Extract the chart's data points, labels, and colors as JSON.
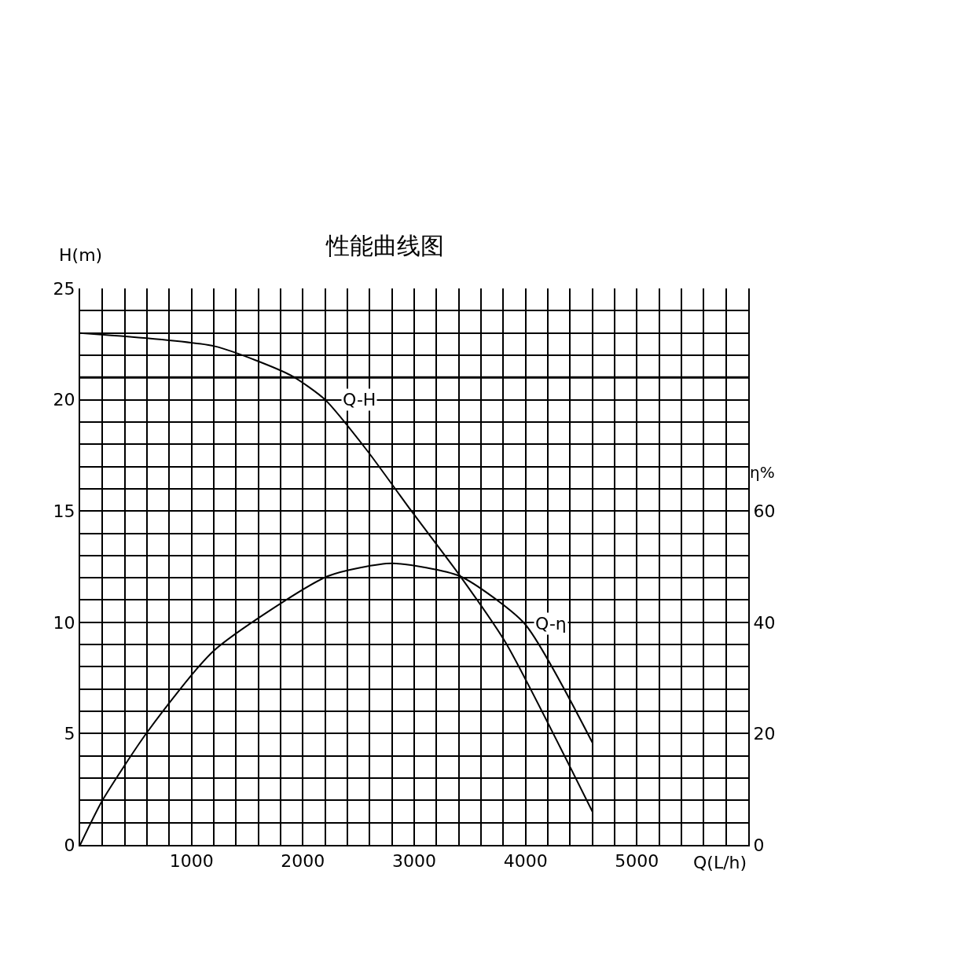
{
  "chart_data": {
    "type": "line",
    "title": "性能曲线图",
    "xlabel": "Q(L/h)",
    "ylabel": "H(m)",
    "y2label": "η%",
    "xlim": [
      0,
      6000
    ],
    "ylim": [
      0,
      25
    ],
    "y2lim": [
      0,
      100
    ],
    "xticks": [
      {
        "value": 0,
        "label": null
      },
      {
        "value": 200,
        "label": null
      },
      {
        "value": 400,
        "label": null
      },
      {
        "value": 600,
        "label": null
      },
      {
        "value": 800,
        "label": null
      },
      1000,
      {
        "value": 1200,
        "label": null
      },
      {
        "value": 1400,
        "label": null
      },
      {
        "value": 1600,
        "label": null
      },
      {
        "value": 1800,
        "label": null
      },
      2000,
      {
        "value": 2200,
        "label": null
      },
      {
        "value": 2400,
        "label": null
      },
      {
        "value": 2600,
        "label": null
      },
      {
        "value": 2800,
        "label": null
      },
      3000,
      {
        "value": 3200,
        "label": null
      },
      {
        "value": 3400,
        "label": null
      },
      {
        "value": 3600,
        "label": null
      },
      {
        "value": 3800,
        "label": null
      },
      4000,
      {
        "value": 4200,
        "label": null
      },
      {
        "value": 4400,
        "label": null
      },
      {
        "value": 4600,
        "label": null
      },
      {
        "value": 4800,
        "label": null
      },
      5000,
      {
        "value": 5200,
        "label": null
      },
      {
        "value": 5400,
        "label": null
      },
      {
        "value": 5600,
        "label": null
      },
      {
        "value": 5800,
        "label": null
      },
      {
        "value": 6000,
        "label": null
      }
    ],
    "yticks": [
      0,
      {
        "value": 1,
        "label": null
      },
      {
        "value": 2,
        "label": null
      },
      {
        "value": 3,
        "label": null
      },
      {
        "value": 4,
        "label": null
      },
      5,
      {
        "value": 6,
        "label": null
      },
      {
        "value": 7,
        "label": null
      },
      {
        "value": 8,
        "label": null
      },
      {
        "value": 9,
        "label": null
      },
      10,
      {
        "value": 11,
        "label": null
      },
      {
        "value": 12,
        "label": null
      },
      {
        "value": 13,
        "label": null
      },
      {
        "value": 14,
        "label": null
      },
      15,
      {
        "value": 16,
        "label": null
      },
      {
        "value": 17,
        "label": null
      },
      {
        "value": 18,
        "label": null
      },
      {
        "value": 19,
        "label": null
      },
      20,
      {
        "value": 21,
        "label": null
      },
      {
        "value": 22,
        "label": null
      },
      {
        "value": 23,
        "label": null
      },
      {
        "value": 24,
        "label": null
      },
      25
    ],
    "y2ticks": [
      0,
      20,
      40,
      60
    ],
    "grid": true,
    "ref_lines": [
      {
        "axis": "y",
        "value": 21
      }
    ],
    "series": [
      {
        "name": "Q-H",
        "color": "#000000",
        "x": [
          0,
          1210,
          1890,
          2200,
          2580,
          2975,
          3410,
          3820,
          4600
        ],
        "values": [
          23.0,
          22.4,
          21.1,
          20.0,
          17.7,
          15.0,
          12.1,
          9.1,
          1.5
        ]
      },
      {
        "name": "Q-η",
        "color": "#000000",
        "axis": "y2",
        "x": [
          0,
          200,
          600,
          1200,
          2225,
          2800,
          3410,
          3990,
          4600
        ],
        "values": [
          0,
          8,
          20.2,
          34.9,
          48.3,
          50.6,
          48.3,
          39.8,
          18.4
        ]
      }
    ]
  }
}
